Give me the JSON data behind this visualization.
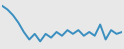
{
  "x": [
    0,
    1,
    2,
    3,
    4,
    5,
    6,
    7,
    8,
    9,
    10,
    11,
    12,
    13,
    14,
    15,
    16,
    17,
    18,
    19,
    20,
    21,
    22
  ],
  "y": [
    28,
    26,
    23,
    19,
    14,
    10,
    13,
    9,
    13,
    11,
    14,
    12,
    15,
    13,
    15,
    12,
    14,
    12,
    18,
    10,
    15,
    13,
    14
  ],
  "line_color": "#3a8fc0",
  "linewidth": 1.4,
  "background_color": "#e8e8e8",
  "ylim": [
    6,
    30
  ],
  "xlim": [
    0,
    22
  ]
}
